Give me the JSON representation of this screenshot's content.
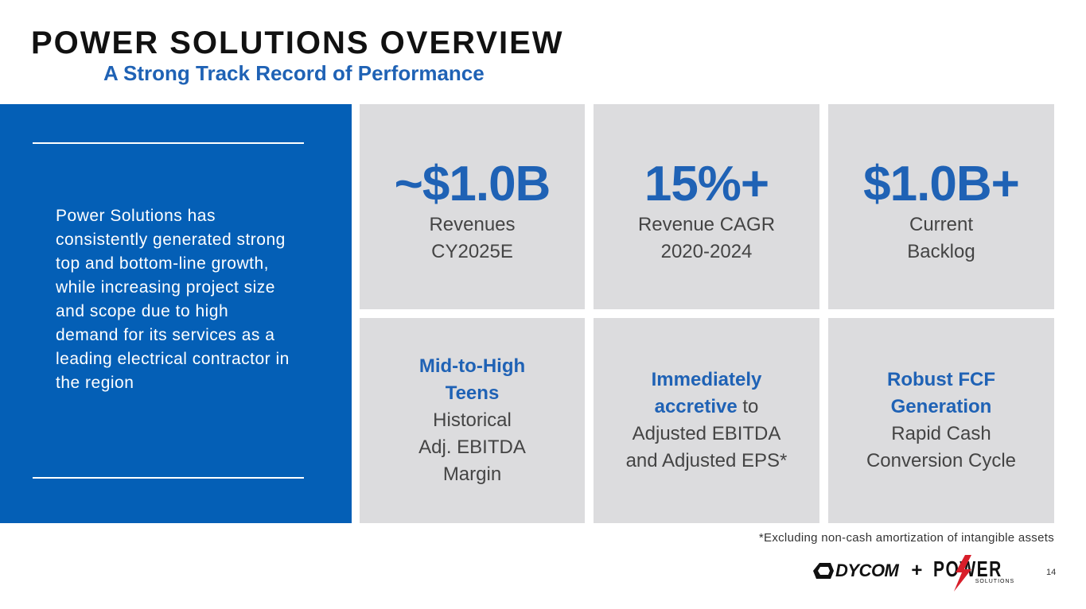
{
  "header": {
    "title": "POWER SOLUTIONS OVERVIEW",
    "subtitle": "A Strong Track Record of Performance"
  },
  "panel": {
    "text": "Power Solutions has consistently generated strong top and bottom-line growth, while increasing project size and scope due to high demand for its services as a leading electrical contractor in the region"
  },
  "metrics": [
    {
      "value": "~$1.0B",
      "line1": "Revenues",
      "line2": "CY2025E"
    },
    {
      "value": "15%+",
      "line1": "Revenue CAGR",
      "line2": "2020-2024"
    },
    {
      "value": "$1.0B+",
      "line1": "Current",
      "line2": "Backlog"
    }
  ],
  "highlights": [
    {
      "hl1": "Mid-to-High",
      "hl2": "Teens",
      "l1": "Historical",
      "l2": "Adj. EBITDA",
      "l3": "Margin"
    },
    {
      "hl1": "Immediately",
      "hl2": "accretive",
      "suffix": " to",
      "l1": "Adjusted EBITDA",
      "l2": "and Adjusted EPS*"
    },
    {
      "hl1": "Robust FCF",
      "hl2": "Generation",
      "l1": "Rapid Cash",
      "l2": "Conversion Cycle"
    }
  ],
  "footnote": "*Excluding non-cash amortization of intangible assets",
  "footer": {
    "dycom_logo": "DYCOM",
    "plus": "+",
    "power_logo_word": "POWER",
    "power_logo_sub": "SOLUTIONS",
    "page_number": "14"
  },
  "colors": {
    "accent_blue": "#1f62b5",
    "panel_blue": "#045fb6",
    "tile_gray": "#dcdcde"
  }
}
